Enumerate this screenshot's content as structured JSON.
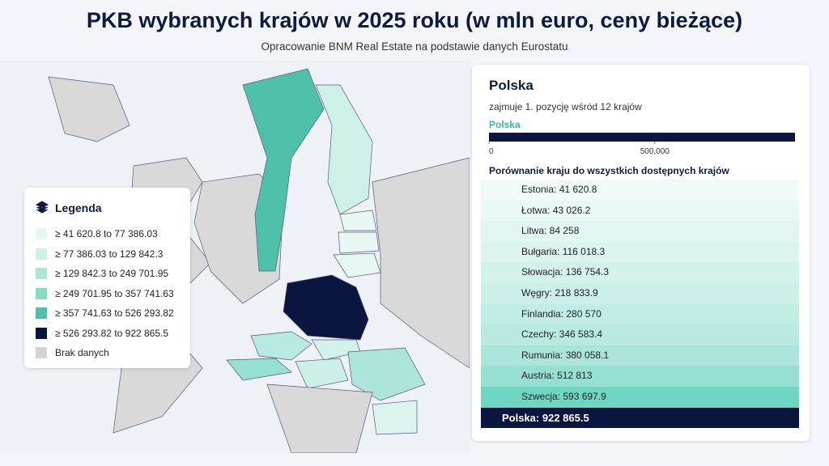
{
  "header": {
    "title": "PKB wybranych krajów w 2025 roku (w mln euro, ceny bieżące)",
    "subtitle": "Opracowanie BNM Real Estate na podstawie danych Eurostatu"
  },
  "legend": {
    "title": "Legenda",
    "items": [
      {
        "label": "≥ 41 620.8 to 77 386.03",
        "color": "#e8f7f3"
      },
      {
        "label": "≥ 77 386.03 to 129 842.3",
        "color": "#cdf0e7"
      },
      {
        "label": "≥ 129 842.3 to 249 701.95",
        "color": "#ade6d9"
      },
      {
        "label": "≥ 249 701.95 to 357 741.63",
        "color": "#86dbc7"
      },
      {
        "label": "≥ 357 741.63 to 526 293.82",
        "color": "#4fc1a9"
      },
      {
        "label": "≥ 526 293.82 to 922 865.5",
        "color": "#0b1640"
      },
      {
        "label": "Brak danych",
        "color": "#d4d4d4"
      }
    ]
  },
  "panel": {
    "title": "Polska",
    "subtitle": "zajmuje 1. pozycję wśród 12 krajów",
    "bar_label": "Polska",
    "bar": {
      "value": 922865.5,
      "xlim": [
        0,
        922865.5
      ],
      "xticks": [
        0,
        {
          "value": 500000,
          "label": "500,000"
        }
      ],
      "color": "#0b1640"
    },
    "comparison_title": "Porównanie kraju do wszystkich dostępnych krajów",
    "rows": [
      {
        "label": "Estonia: 41 620.8",
        "color": "#f0faf8"
      },
      {
        "label": "Łotwa: 43 026.2",
        "color": "#e9f8f4"
      },
      {
        "label": "Litwa: 84 258",
        "color": "#e2f6f1"
      },
      {
        "label": "Bułgaria: 116 018.3",
        "color": "#dbf4ee"
      },
      {
        "label": "Słowacja: 136 754.3",
        "color": "#d3f2ea"
      },
      {
        "label": "Węgry: 218 833.9",
        "color": "#cbf0e7"
      },
      {
        "label": "Finlandia: 280 570",
        "color": "#c2ede3"
      },
      {
        "label": "Czechy: 346 583.4",
        "color": "#b8eadf"
      },
      {
        "label": "Rumunia: 380 058.1",
        "color": "#ace6da"
      },
      {
        "label": "Austria: 512 813",
        "color": "#96e0d1"
      },
      {
        "label": "Szwecja: 593 697.9",
        "color": "#6fd6c1"
      },
      {
        "label": "Polska: 922 865.5",
        "color": "#0b1640",
        "highlight": true
      }
    ]
  }
}
